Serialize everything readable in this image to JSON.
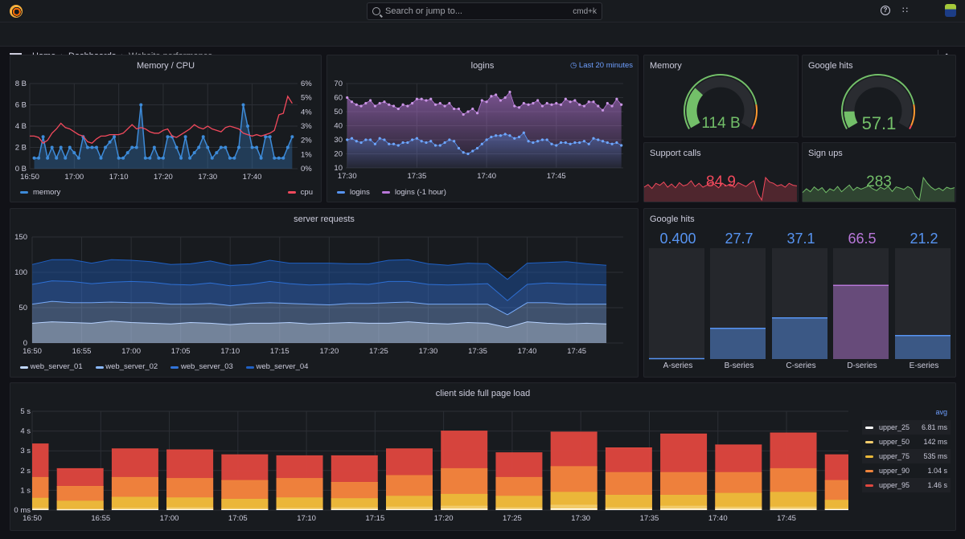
{
  "topbar": {
    "search_placeholder": "Search or jump to...",
    "shortcut": "cmd+k",
    "icons": [
      "grafana-logo",
      "search-icon",
      "help-icon",
      "rss-icon",
      "avatar"
    ]
  },
  "breadcrumb": [
    "Home",
    "Dashboards",
    "Website performance"
  ],
  "panels": {
    "memory_cpu": {
      "title": "Memory / CPU",
      "legend": [
        {
          "name": "memory",
          "color": "#3d8bd9"
        },
        {
          "name": "cpu",
          "color": "#f2495c"
        }
      ],
      "y_left_ticks": [
        "0 B",
        "2 B",
        "4 B",
        "6 B",
        "8 B"
      ],
      "y_right_ticks": [
        "0%",
        "1%",
        "2%",
        "3%",
        "4%",
        "5%",
        "6%"
      ],
      "x_ticks": [
        "16:50",
        "17:00",
        "17:10",
        "17:20",
        "17:30",
        "17:40"
      ],
      "y_left_range": [
        0,
        8
      ],
      "y_right_range": [
        0,
        6
      ],
      "memory_start": "16:51",
      "step_minutes": 1,
      "memory": [
        1,
        1,
        3,
        1,
        2,
        1,
        2,
        1,
        2,
        1.5,
        1,
        3,
        2,
        2,
        2,
        1,
        2,
        2.5,
        3,
        1,
        1,
        1.5,
        2,
        2,
        6,
        1,
        1,
        2,
        1,
        1,
        3,
        3,
        2,
        1,
        3,
        1,
        1.5,
        2,
        3,
        2,
        1,
        1.5,
        2,
        2,
        1,
        1,
        2,
        6,
        4,
        2,
        2,
        1,
        3,
        3,
        1,
        1,
        1,
        2,
        3
      ],
      "cpu_start": "16:50",
      "cpu": [
        2.3,
        2.3,
        2.2,
        1.8,
        2.0,
        2.5,
        2.8,
        3.2,
        2.9,
        2.8,
        2.6,
        2.4,
        2.3,
        1.9,
        1.8,
        2.1,
        2.3,
        2.3,
        2.4,
        2.4,
        2.4,
        2.5,
        2.8,
        3.1,
        2.8,
        2.9,
        2.8,
        2.6,
        2.5,
        2.5,
        2.7,
        2.8,
        2.3,
        2.2,
        2.4,
        2.6,
        2.8,
        3.1,
        2.9,
        2.8,
        3.0,
        2.8,
        2.7,
        2.6,
        2.9,
        3.0,
        2.9,
        2.8,
        2.5,
        2.4,
        2.3,
        2.4,
        2.3,
        2.4,
        2.5,
        2.7,
        3.8,
        3.9,
        5.1,
        4.6
      ]
    },
    "logins": {
      "title": "logins",
      "time_info": "Last 20 minutes",
      "legend": [
        {
          "name": "logins",
          "color": "#5794f2"
        },
        {
          "name": "logins (-1 hour)",
          "color": "#b877d9"
        }
      ],
      "y_ticks": [
        "10",
        "20",
        "30",
        "40",
        "50",
        "60",
        "70"
      ],
      "y_range": [
        10,
        70
      ],
      "x_ticks": [
        "17:30",
        "17:35",
        "17:40",
        "17:45"
      ],
      "start": "17:30",
      "step_seconds": 20,
      "logins": [
        30,
        31,
        29,
        28,
        30,
        30,
        27,
        31,
        30,
        27,
        27,
        26,
        28,
        28,
        30,
        31,
        29,
        28,
        29,
        26,
        26,
        28,
        30,
        29,
        24,
        21,
        20,
        22,
        24,
        27,
        30,
        32,
        33,
        33,
        34,
        33,
        31,
        32,
        35,
        29,
        28,
        29,
        30,
        30,
        27,
        26,
        28,
        28,
        27,
        28,
        28,
        29,
        27,
        31,
        30,
        29,
        28,
        27,
        28,
        26
      ],
      "logins_1h": [
        60,
        57,
        55,
        54,
        56,
        58,
        54,
        56,
        57,
        55,
        54,
        52,
        55,
        54,
        56,
        59,
        59,
        58,
        59,
        55,
        56,
        54,
        56,
        52,
        52,
        48,
        50,
        52,
        49,
        58,
        57,
        61,
        62,
        58,
        60,
        64,
        54,
        53,
        56,
        55,
        56,
        58,
        54,
        56,
        55,
        56,
        55,
        59,
        57,
        58,
        55,
        54,
        57,
        57,
        54,
        51,
        56,
        54,
        59,
        55
      ]
    },
    "memory_gauge": {
      "title": "Memory",
      "value": "114 B",
      "fill": 0.3,
      "color": "#73bf69"
    },
    "google_gauge": {
      "title": "Google hits",
      "value": "57.1",
      "fill": 0.12,
      "color": "#73bf69"
    },
    "support_calls": {
      "title": "Support calls",
      "value": "84.9",
      "color": "#f2495c",
      "series": [
        80,
        84,
        78,
        86,
        83,
        88,
        80,
        85,
        79,
        87,
        82,
        84,
        90,
        81,
        86,
        80,
        83,
        88,
        84,
        79,
        86,
        82,
        85,
        80,
        87,
        84,
        81,
        86,
        90,
        70,
        60,
        95,
        88,
        86,
        82,
        84,
        80,
        86,
        83,
        82
      ]
    },
    "sign_ups": {
      "title": "Sign ups",
      "value": "283",
      "color": "#73bf69",
      "series": [
        270,
        280,
        272,
        285,
        276,
        283,
        270,
        280,
        275,
        286,
        272,
        281,
        290,
        276,
        284,
        279,
        283,
        288,
        280,
        275,
        284,
        279,
        286,
        273,
        285,
        282,
        278,
        286,
        280,
        260,
        250,
        310,
        295,
        284,
        277,
        282,
        275,
        284,
        280,
        283
      ]
    },
    "server_requests": {
      "title": "server requests",
      "y_ticks": [
        "0",
        "50",
        "100",
        "150"
      ],
      "y_range": [
        0,
        150
      ],
      "x_ticks": [
        "16:50",
        "16:55",
        "17:00",
        "17:05",
        "17:10",
        "17:15",
        "17:20",
        "17:25",
        "17:30",
        "17:35",
        "17:40",
        "17:45"
      ],
      "start": "16:50",
      "step_minutes": 2,
      "series": [
        {
          "name": "web_server_01",
          "color": "#c0d8ff",
          "values": [
            28,
            30,
            29,
            28,
            31,
            29,
            28,
            27,
            29,
            28,
            26,
            28,
            28,
            29,
            27,
            28,
            29,
            28,
            28,
            30,
            28,
            27,
            29,
            28,
            22,
            30,
            28,
            27,
            28,
            27
          ]
        },
        {
          "name": "web_server_02",
          "color": "#8ab8ff",
          "values": [
            27,
            29,
            28,
            29,
            27,
            28,
            29,
            28,
            26,
            28,
            27,
            28,
            29,
            27,
            28,
            26,
            27,
            28,
            29,
            28,
            27,
            28,
            26,
            27,
            18,
            27,
            29,
            28,
            27,
            28
          ]
        },
        {
          "name": "web_server_03",
          "color": "#3274d9",
          "values": [
            28,
            29,
            30,
            27,
            28,
            30,
            29,
            28,
            27,
            29,
            28,
            27,
            30,
            28,
            27,
            29,
            28,
            27,
            30,
            29,
            28,
            27,
            28,
            29,
            20,
            26,
            28,
            29,
            28,
            27
          ]
        },
        {
          "name": "web_server_04",
          "color": "#1f60c4",
          "values": [
            28,
            30,
            31,
            29,
            32,
            30,
            29,
            28,
            30,
            31,
            29,
            28,
            30,
            29,
            31,
            30,
            28,
            29,
            30,
            31,
            29,
            28,
            30,
            28,
            30,
            30,
            29,
            31,
            29,
            28
          ]
        }
      ]
    },
    "google_hits_bars": {
      "title": "Google hits",
      "max": 100,
      "items": [
        {
          "label": "A-series",
          "value": 0.4,
          "text": "0.400",
          "color": "#5794f2"
        },
        {
          "label": "B-series",
          "value": 27.7,
          "text": "27.7",
          "color": "#5794f2"
        },
        {
          "label": "C-series",
          "value": 37.1,
          "text": "37.1",
          "color": "#5794f2"
        },
        {
          "label": "D-series",
          "value": 66.5,
          "text": "66.5",
          "color": "#b877d9"
        },
        {
          "label": "E-series",
          "value": 21.2,
          "text": "21.2",
          "color": "#5794f2"
        }
      ]
    },
    "page_load": {
      "title": "client side full page load",
      "y_ticks": [
        "0 ms",
        "1 s",
        "2 s",
        "3 s",
        "4 s",
        "5 s"
      ],
      "y_range": [
        0,
        5
      ],
      "x_ticks": [
        "16:50",
        "16:55",
        "17:00",
        "17:05",
        "17:10",
        "17:15",
        "17:20",
        "17:25",
        "17:30",
        "17:35",
        "17:40",
        "17:45"
      ],
      "legend_header": "avg",
      "bar_times": [
        "16:49:30",
        "16:53:30",
        "16:57:30",
        "17:01:30",
        "17:05:30",
        "17:09:30",
        "17:13:30",
        "17:17:30",
        "17:21:30",
        "17:25:30",
        "17:29:30",
        "17:33:30",
        "17:37:30",
        "17:41:30",
        "17:45:30",
        "17:49:30"
      ],
      "series": [
        {
          "name": "upper_95",
          "avg": "1.46 s",
          "color": "#e0473f",
          "values": [
            3.35,
            2.1,
            3.1,
            3.05,
            2.8,
            2.75,
            2.75,
            3.1,
            4.0,
            2.9,
            3.95,
            3.15,
            3.85,
            3.3,
            3.9,
            2.8
          ]
        },
        {
          "name": "upper_90",
          "avg": "1.04 s",
          "color": "#ef843c",
          "values": [
            1.65,
            1.2,
            1.65,
            1.6,
            1.5,
            1.6,
            1.4,
            1.75,
            2.1,
            1.65,
            2.2,
            1.9,
            1.9,
            1.9,
            2.1,
            1.5
          ]
        },
        {
          "name": "upper_75",
          "avg": "535 ms",
          "color": "#eab839",
          "values": [
            0.6,
            0.45,
            0.65,
            0.62,
            0.55,
            0.62,
            0.58,
            0.7,
            0.8,
            0.7,
            0.9,
            0.75,
            0.75,
            0.85,
            0.9,
            0.5
          ]
        },
        {
          "name": "upper_50",
          "avg": "142 ms",
          "color": "#f2cc6c",
          "values": [
            0.1,
            0.05,
            0.1,
            0.12,
            0.08,
            0.1,
            0.12,
            0.15,
            0.2,
            0.12,
            0.25,
            0.12,
            0.2,
            0.15,
            0.15,
            0.08
          ]
        },
        {
          "name": "upper_25",
          "avg": "6.81 ms",
          "color": "#ffffff",
          "values": [
            0.03,
            0.01,
            0.02,
            0.03,
            0.02,
            0.02,
            0.03,
            0.03,
            0.05,
            0.03,
            0.06,
            0.03,
            0.05,
            0.04,
            0.04,
            0.02
          ]
        }
      ]
    }
  }
}
